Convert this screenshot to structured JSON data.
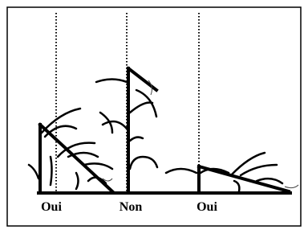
{
  "labels": [
    "Oui",
    "Non",
    "Oui"
  ]
}
